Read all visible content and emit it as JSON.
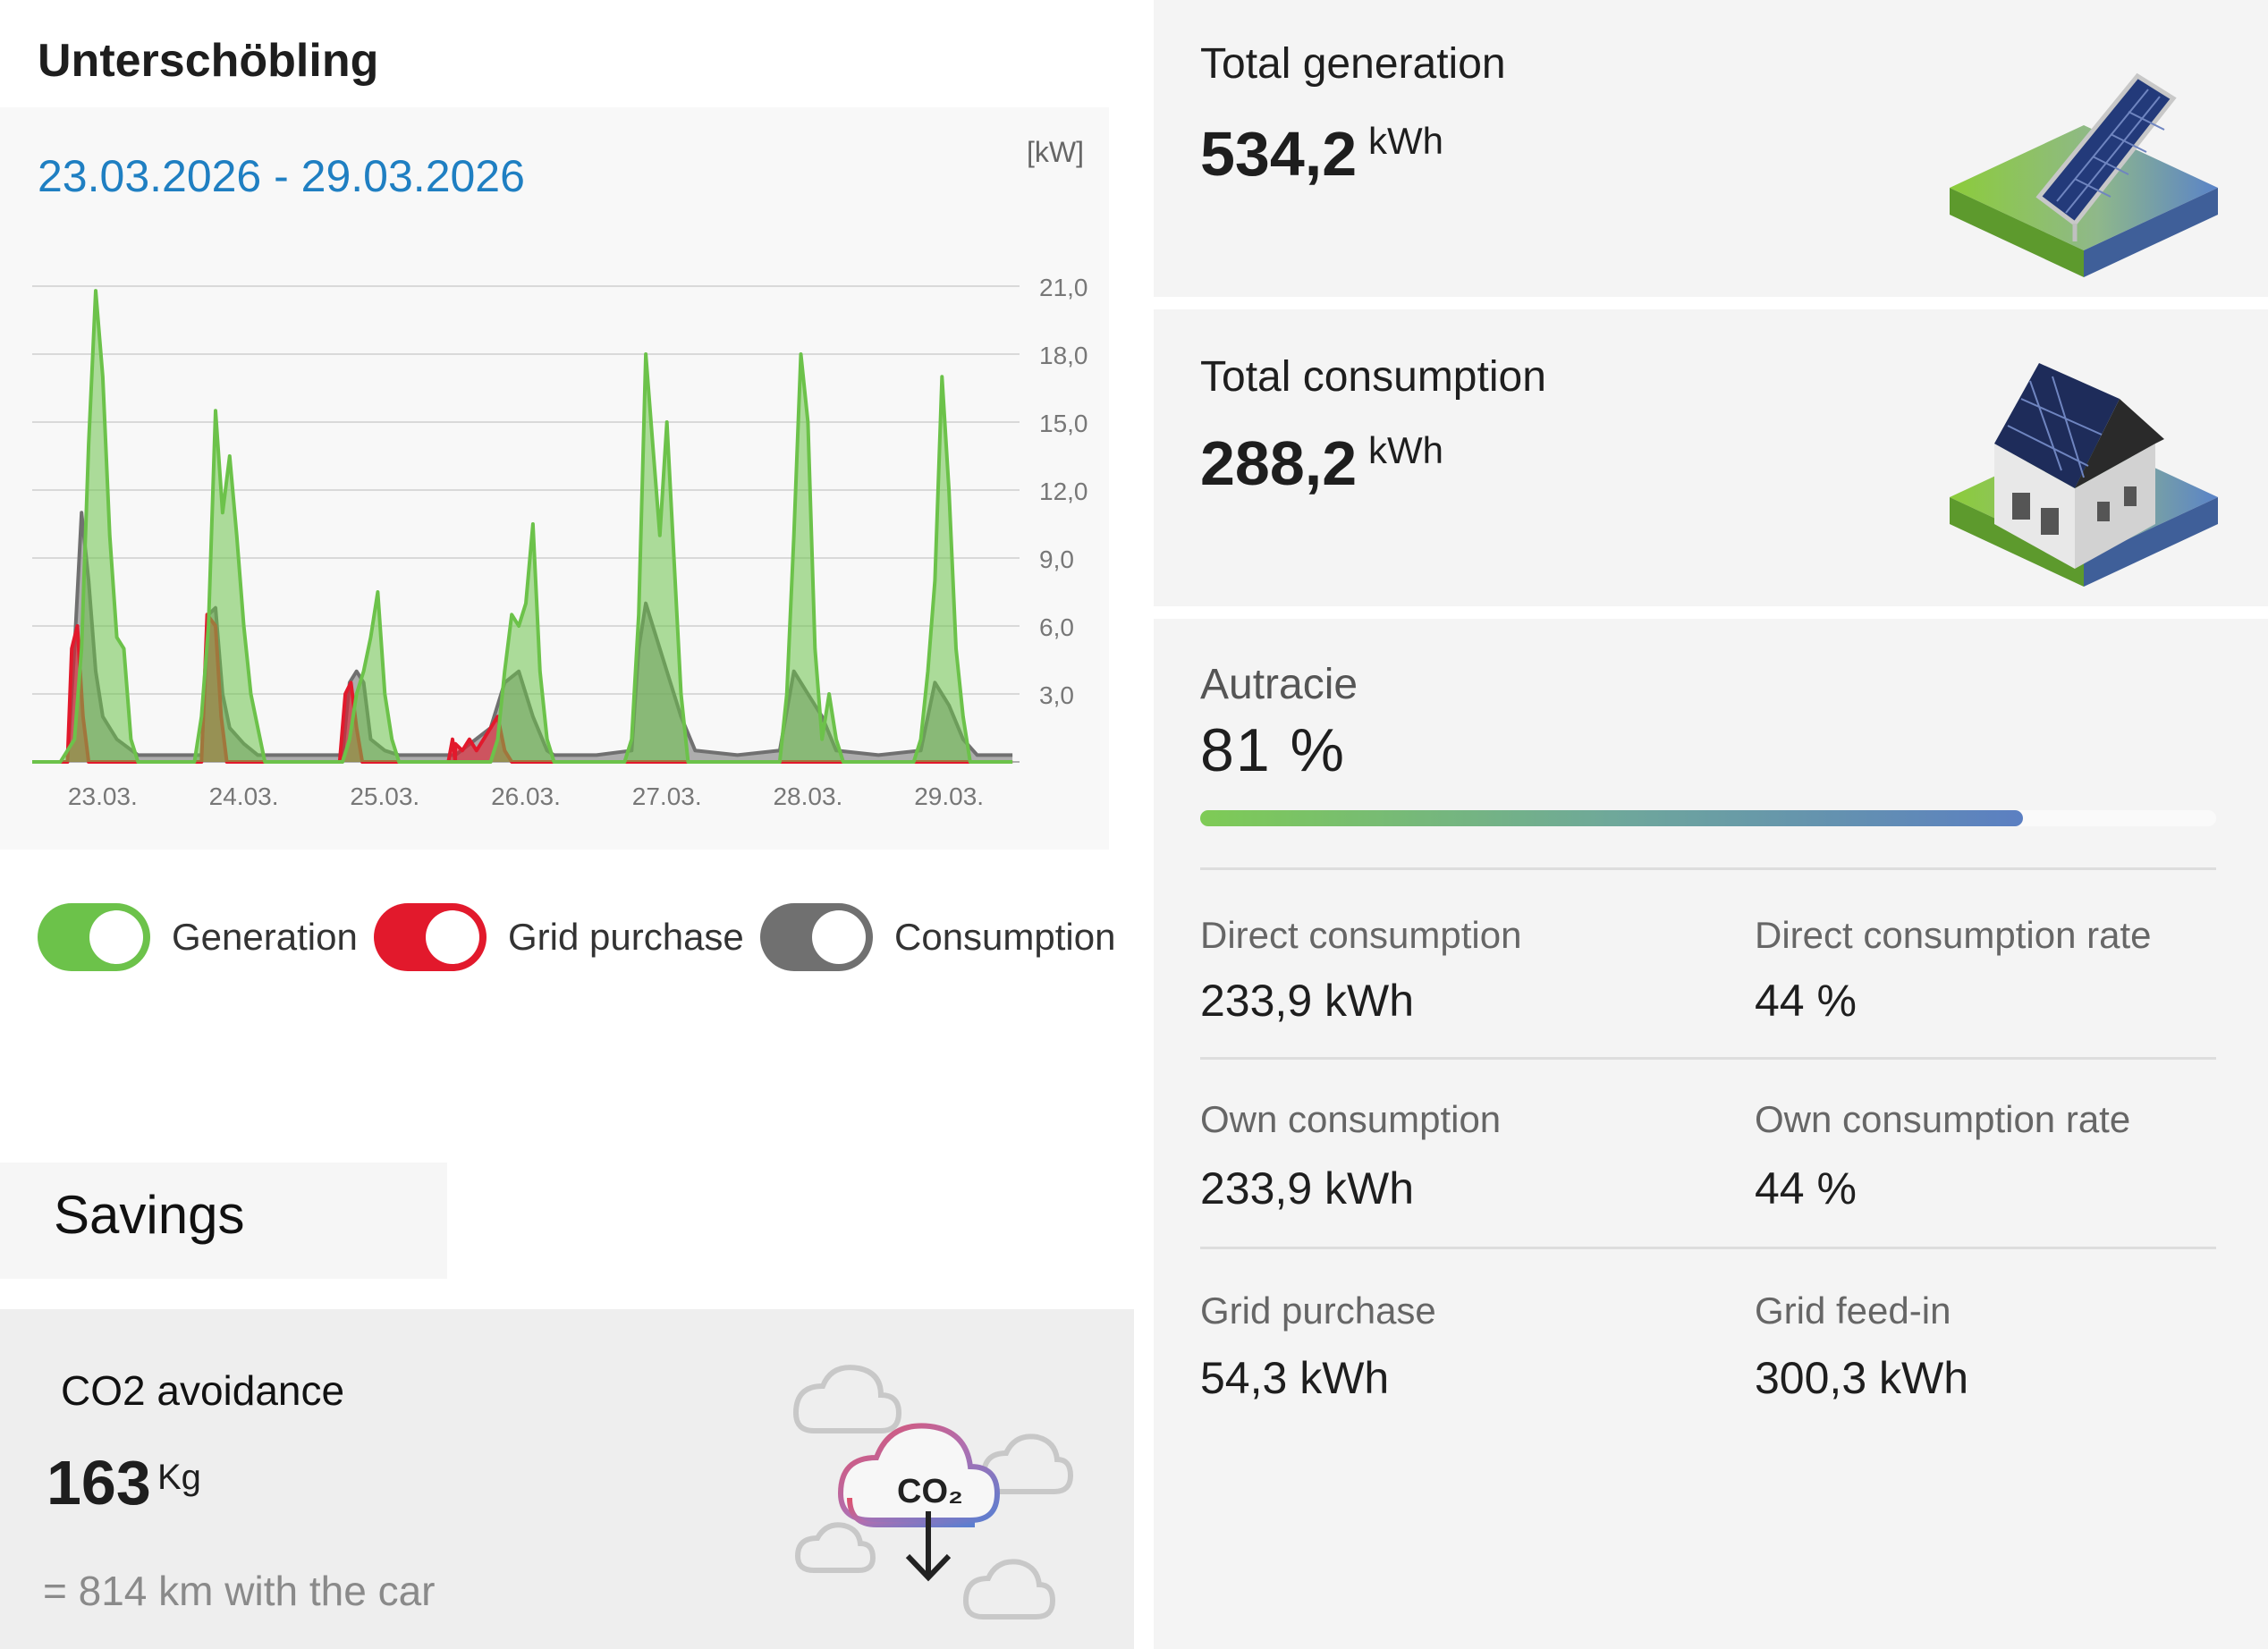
{
  "site": {
    "title": "Unterschöbling"
  },
  "chart_header": {
    "date_range": "23.03.2026 - 29.03.2026",
    "unit": "[kW]"
  },
  "chart_data": {
    "type": "area",
    "title": "",
    "xlabel": "",
    "ylabel": "[kW]",
    "ylim": [
      0,
      21
    ],
    "y_ticks": [
      "21,0",
      "18,0",
      "15,0",
      "12,0",
      "9,0",
      "6,0",
      "3,0"
    ],
    "y_tick_values": [
      21,
      18,
      15,
      12,
      9,
      6,
      3
    ],
    "x_ticks": [
      "23.03.",
      "24.03.",
      "25.03.",
      "26.03.",
      "27.03.",
      "28.03.",
      "29.03."
    ],
    "grid": true,
    "series": [
      {
        "name": "Generation",
        "color": "#6cc24a",
        "points": [
          [
            0,
            0
          ],
          [
            0.2,
            0
          ],
          [
            0.3,
            1.0
          ],
          [
            0.35,
            5.0
          ],
          [
            0.4,
            14.0
          ],
          [
            0.45,
            20.8
          ],
          [
            0.5,
            17.0
          ],
          [
            0.55,
            10.0
          ],
          [
            0.6,
            5.5
          ],
          [
            0.65,
            5.0
          ],
          [
            0.7,
            1.0
          ],
          [
            0.75,
            0
          ],
          [
            1.0,
            0
          ],
          [
            1.15,
            0
          ],
          [
            1.2,
            2.0
          ],
          [
            1.25,
            6.0
          ],
          [
            1.3,
            15.5
          ],
          [
            1.35,
            11.0
          ],
          [
            1.4,
            13.5
          ],
          [
            1.45,
            10.0
          ],
          [
            1.5,
            6.0
          ],
          [
            1.55,
            3.0
          ],
          [
            1.6,
            1.5
          ],
          [
            1.65,
            0
          ],
          [
            2.0,
            0
          ],
          [
            2.2,
            0
          ],
          [
            2.25,
            1.0
          ],
          [
            2.3,
            3.0
          ],
          [
            2.35,
            4.0
          ],
          [
            2.4,
            5.5
          ],
          [
            2.45,
            7.5
          ],
          [
            2.5,
            3.0
          ],
          [
            2.55,
            1.0
          ],
          [
            2.6,
            0
          ],
          [
            3.0,
            0
          ],
          [
            3.25,
            0
          ],
          [
            3.3,
            1.0
          ],
          [
            3.35,
            4.0
          ],
          [
            3.4,
            6.5
          ],
          [
            3.45,
            6.0
          ],
          [
            3.5,
            7.0
          ],
          [
            3.55,
            10.5
          ],
          [
            3.6,
            4.0
          ],
          [
            3.65,
            1.0
          ],
          [
            3.7,
            0
          ],
          [
            4.0,
            0
          ],
          [
            4.2,
            0
          ],
          [
            4.25,
            1.0
          ],
          [
            4.3,
            6.5
          ],
          [
            4.35,
            18.0
          ],
          [
            4.4,
            14.0
          ],
          [
            4.45,
            10.0
          ],
          [
            4.5,
            15.0
          ],
          [
            4.55,
            9.0
          ],
          [
            4.6,
            3.0
          ],
          [
            4.65,
            0
          ],
          [
            5.0,
            0
          ],
          [
            5.3,
            0
          ],
          [
            5.35,
            3.0
          ],
          [
            5.4,
            10.0
          ],
          [
            5.45,
            18.0
          ],
          [
            5.5,
            15.0
          ],
          [
            5.55,
            5.0
          ],
          [
            5.6,
            1.0
          ],
          [
            5.65,
            3.0
          ],
          [
            5.7,
            1.0
          ],
          [
            5.75,
            0
          ],
          [
            6.0,
            0
          ],
          [
            6.25,
            0
          ],
          [
            6.3,
            1.0
          ],
          [
            6.35,
            4.0
          ],
          [
            6.4,
            8.0
          ],
          [
            6.45,
            17.0
          ],
          [
            6.5,
            12.0
          ],
          [
            6.55,
            5.0
          ],
          [
            6.6,
            2.0
          ],
          [
            6.65,
            0
          ],
          [
            6.95,
            0
          ]
        ]
      },
      {
        "name": "Grid purchase",
        "color": "#e2192c",
        "points": [
          [
            0,
            0
          ],
          [
            0.25,
            0
          ],
          [
            0.28,
            5.0
          ],
          [
            0.32,
            6.0
          ],
          [
            0.36,
            2.0
          ],
          [
            0.4,
            0
          ],
          [
            1.0,
            0
          ],
          [
            1.2,
            0
          ],
          [
            1.24,
            6.5
          ],
          [
            1.3,
            6.0
          ],
          [
            1.34,
            2.0
          ],
          [
            1.38,
            0
          ],
          [
            2.0,
            0
          ],
          [
            2.18,
            0
          ],
          [
            2.22,
            3.0
          ],
          [
            2.26,
            3.5
          ],
          [
            2.3,
            1.5
          ],
          [
            2.34,
            0
          ],
          [
            3.0,
            0
          ],
          [
            2.95,
            0
          ],
          [
            2.98,
            1.0
          ],
          [
            3.0,
            0.8
          ],
          [
            3.05,
            0.5
          ],
          [
            3.1,
            1.0
          ],
          [
            3.15,
            0.5
          ],
          [
            3.2,
            1.0
          ],
          [
            3.25,
            1.5
          ],
          [
            3.3,
            2.0
          ],
          [
            3.35,
            0.5
          ],
          [
            3.4,
            0
          ],
          [
            6.95,
            0
          ]
        ]
      },
      {
        "name": "Consumption",
        "color": "#707070",
        "points": [
          [
            0,
            0
          ],
          [
            0.25,
            0
          ],
          [
            0.3,
            5.0
          ],
          [
            0.35,
            11.0
          ],
          [
            0.4,
            8.0
          ],
          [
            0.45,
            4.0
          ],
          [
            0.5,
            2.0
          ],
          [
            0.6,
            1.0
          ],
          [
            0.75,
            0.3
          ],
          [
            1.0,
            0.3
          ],
          [
            1.2,
            0.3
          ],
          [
            1.25,
            6.5
          ],
          [
            1.3,
            6.8
          ],
          [
            1.35,
            3.0
          ],
          [
            1.4,
            1.5
          ],
          [
            1.5,
            0.8
          ],
          [
            1.6,
            0.3
          ],
          [
            2.0,
            0.3
          ],
          [
            2.2,
            0.3
          ],
          [
            2.25,
            3.5
          ],
          [
            2.3,
            4.0
          ],
          [
            2.35,
            3.5
          ],
          [
            2.4,
            1.0
          ],
          [
            2.5,
            0.5
          ],
          [
            2.6,
            0.3
          ],
          [
            3.0,
            0.3
          ],
          [
            3.25,
            1.5
          ],
          [
            3.35,
            3.5
          ],
          [
            3.45,
            4.0
          ],
          [
            3.55,
            2.0
          ],
          [
            3.65,
            0.5
          ],
          [
            3.7,
            0.3
          ],
          [
            4.0,
            0.3
          ],
          [
            4.25,
            0.5
          ],
          [
            4.3,
            5.0
          ],
          [
            4.35,
            7.0
          ],
          [
            4.4,
            6.0
          ],
          [
            4.5,
            4.0
          ],
          [
            4.6,
            2.0
          ],
          [
            4.7,
            0.5
          ],
          [
            5.0,
            0.3
          ],
          [
            5.3,
            0.5
          ],
          [
            5.4,
            4.0
          ],
          [
            5.5,
            3.0
          ],
          [
            5.6,
            2.0
          ],
          [
            5.7,
            0.5
          ],
          [
            6.0,
            0.3
          ],
          [
            6.3,
            0.5
          ],
          [
            6.4,
            3.5
          ],
          [
            6.5,
            2.5
          ],
          [
            6.6,
            1.0
          ],
          [
            6.7,
            0.3
          ],
          [
            6.95,
            0.3
          ]
        ]
      }
    ]
  },
  "legend": [
    {
      "name": "generation",
      "label": "Generation",
      "color": "#6cc24a"
    },
    {
      "name": "grid-purchase",
      "label": "Grid purchase",
      "color": "#e2192c"
    },
    {
      "name": "consumption",
      "label": "Consumption",
      "color": "#707070"
    }
  ],
  "savings": {
    "title": "Savings",
    "co2_title": "CO2 avoidance",
    "co2_value": "163",
    "co2_unit": "Kg",
    "co2_equivalent": "= 814 km with the car",
    "co2_icon_text": "CO₂"
  },
  "generation_panel": {
    "label": "Total generation",
    "value": "534,2",
    "unit": "kWh",
    "icon": "solar-panel-icon"
  },
  "consumption_panel": {
    "label": "Total consumption",
    "value": "288,2",
    "unit": "kWh",
    "icon": "house-icon"
  },
  "autarky": {
    "label": "Autracie",
    "value": "81 %",
    "fraction": 0.81,
    "stats": [
      {
        "name": "direct-consumption",
        "label": "Direct consumption",
        "value": "233,9 kWh"
      },
      {
        "name": "direct-consumption-rate",
        "label": "Direct consumption rate",
        "value": "44 %"
      },
      {
        "name": "own-consumption",
        "label": "Own consumption",
        "value": "233,9 kWh"
      },
      {
        "name": "own-consumption-rate",
        "label": "Own consumption rate",
        "value": "44 %"
      },
      {
        "name": "grid-purchase",
        "label": "Grid purchase",
        "value": "54,3 kWh"
      },
      {
        "name": "grid-feed-in",
        "label": "Grid feed-in",
        "value": "300,3 kWh"
      }
    ]
  }
}
